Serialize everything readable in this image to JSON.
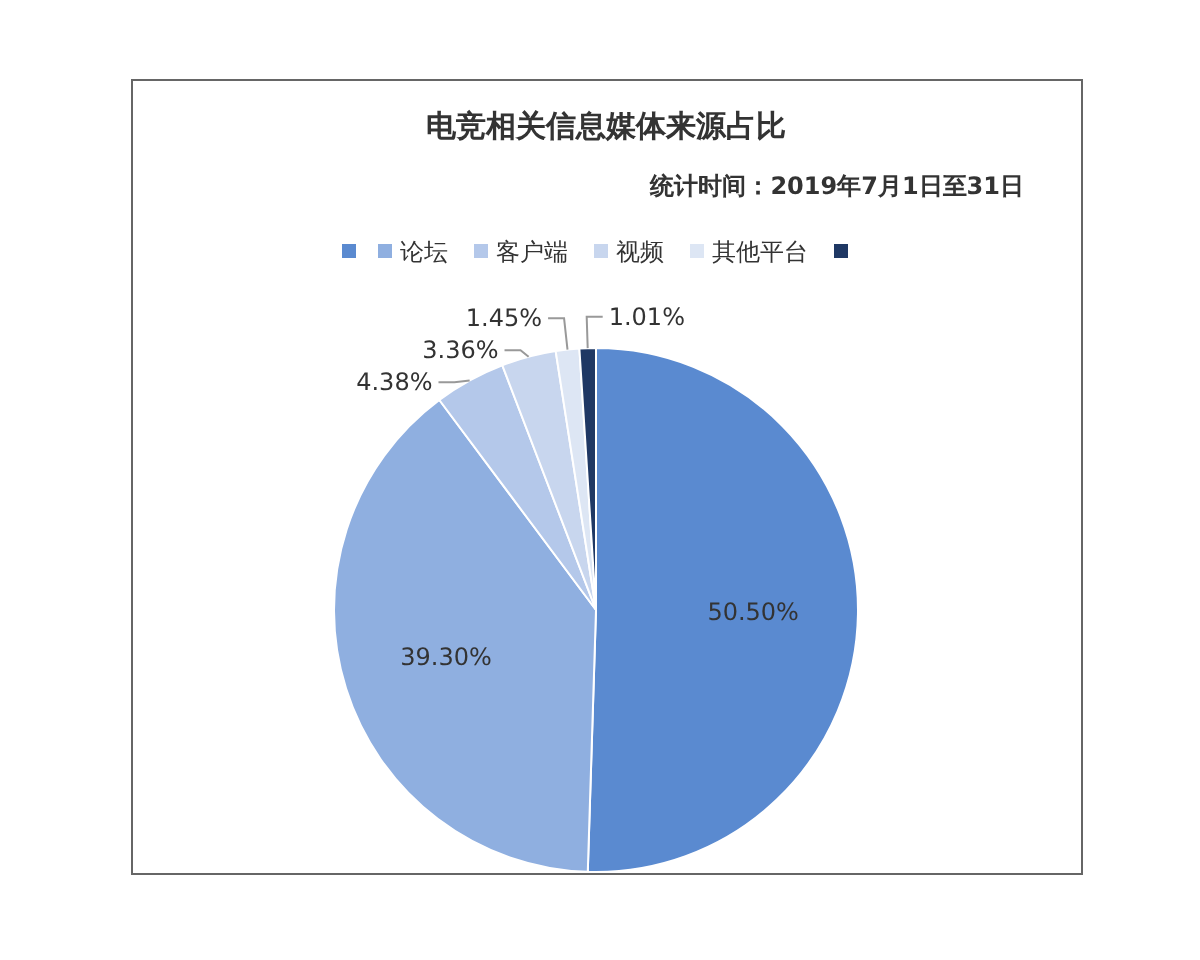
{
  "chart_data": {
    "type": "pie",
    "title": "电竞相关信息媒体来源占比",
    "subtitle": "统计时间：2019年7月1日至31日",
    "categories": [
      null,
      "论坛",
      "客户端",
      "视频",
      "其他平台",
      null
    ],
    "values": [
      50.5,
      39.3,
      4.38,
      3.36,
      1.45,
      1.01
    ],
    "value_labels": [
      "50.50%",
      "39.30%",
      "4.38%",
      "3.36%",
      "1.45%",
      "1.01%"
    ],
    "colors": [
      "#5a8ad0",
      "#8fafe0",
      "#b4c8ea",
      "#c8d6ee",
      "#dde6f4",
      "#1f3864"
    ],
    "legend": "top"
  }
}
